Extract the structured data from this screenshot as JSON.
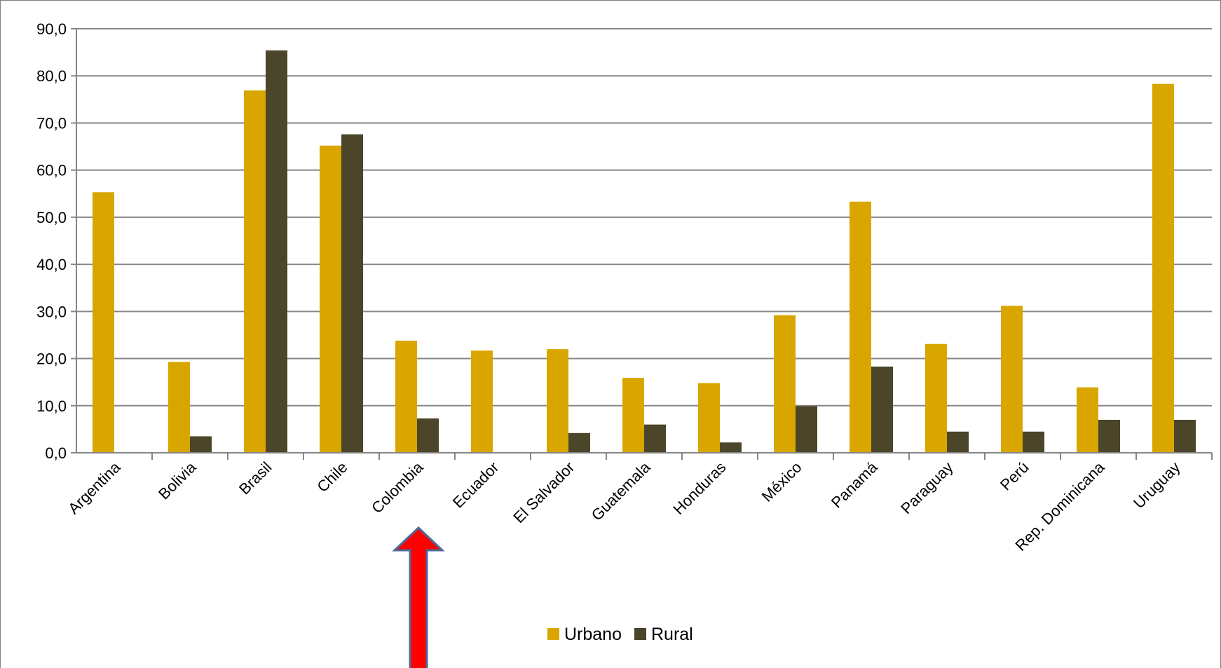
{
  "chart_data": {
    "type": "bar",
    "title": "",
    "xlabel": "",
    "ylabel": "",
    "ylim": [
      0,
      90
    ],
    "ytick_step": 10,
    "ytick_format": "comma-1-decimal",
    "grid": true,
    "legend_position": "bottom-center",
    "categories": [
      "Argentina",
      "Bolivia",
      "Brasil",
      "Chile",
      "Colombia",
      "Ecuador",
      "El Salvador",
      "Guatemala",
      "Honduras",
      "México",
      "Panamá",
      "Paraguay",
      "Perú",
      "Rep. Dominicana",
      "Uruguay"
    ],
    "series": [
      {
        "name": "Urbano",
        "color": "#D9A600",
        "values": [
          55.3,
          19.3,
          76.9,
          65.2,
          23.8,
          21.7,
          22.0,
          15.9,
          14.8,
          29.2,
          53.3,
          23.1,
          31.2,
          13.9,
          78.3
        ]
      },
      {
        "name": "Rural",
        "color": "#4B4529",
        "values": [
          null,
          3.5,
          85.4,
          67.6,
          7.3,
          null,
          4.2,
          6.0,
          2.2,
          9.9,
          18.3,
          4.5,
          4.5,
          7.0,
          7.0
        ]
      }
    ],
    "annotations": [
      {
        "type": "arrow",
        "direction": "up",
        "points_to": "Colombia",
        "color": "#FF0000",
        "outline": "#4A6A9A"
      }
    ]
  }
}
